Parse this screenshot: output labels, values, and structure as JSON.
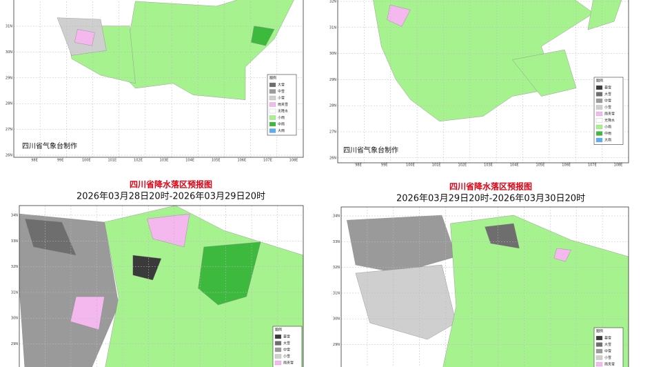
{
  "panels": [
    {
      "credit": "四川省气象台制作",
      "legend": {
        "title": "图例",
        "items": [
          {
            "label": "大雪",
            "color": "#6e6e6e"
          },
          {
            "label": "中雪",
            "color": "#9a9a9a"
          },
          {
            "label": "小雪",
            "color": "#cfcfcf"
          },
          {
            "label": "雨夹雪",
            "color": "#f4b8ee"
          },
          {
            "label": "无降水",
            "color": "#ffffff"
          },
          {
            "label": "小雨",
            "color": "#a6f28f"
          },
          {
            "label": "中雨",
            "color": "#3dba3d"
          },
          {
            "label": "大雨",
            "color": "#5aaef0"
          }
        ]
      },
      "xticks": [
        "98E",
        "99E",
        "100E",
        "101E",
        "102E",
        "103E",
        "104E",
        "105E",
        "106E",
        "107E",
        "108E"
      ],
      "yticks": [
        "31N",
        "30N",
        "29N",
        "28N",
        "27N",
        "26N"
      ]
    },
    {
      "credit": "四川省气象台制作",
      "legend": {
        "title": "图例",
        "items": [
          {
            "label": "暴雪",
            "color": "#3a3a3a"
          },
          {
            "label": "大雪",
            "color": "#6e6e6e"
          },
          {
            "label": "中雪",
            "color": "#9a9a9a"
          },
          {
            "label": "小雪",
            "color": "#cfcfcf"
          },
          {
            "label": "雨夹雪",
            "color": "#f4b8ee"
          },
          {
            "label": "无降水",
            "color": "#ffffff"
          },
          {
            "label": "小雨",
            "color": "#a6f28f"
          },
          {
            "label": "中雨",
            "color": "#3dba3d"
          },
          {
            "label": "大雨",
            "color": "#5aaef0"
          }
        ]
      },
      "xticks": [
        "98E",
        "99E",
        "100E",
        "101E",
        "102E",
        "103E",
        "104E",
        "105E",
        "106E",
        "107E",
        "108E"
      ],
      "yticks": [
        "32N",
        "31N",
        "30N",
        "29N",
        "28N",
        "27N",
        "26N"
      ]
    },
    {
      "title": "四川省降水落区预报图",
      "subtitle": "2026年03月28日20时-2026年03月29日20时",
      "legend": {
        "title": "图例",
        "items": [
          {
            "label": "暴雪",
            "color": "#3a3a3a"
          },
          {
            "label": "大雪",
            "color": "#6e6e6e"
          },
          {
            "label": "中雪",
            "color": "#9a9a9a"
          },
          {
            "label": "小雪",
            "color": "#cfcfcf"
          },
          {
            "label": "雨夹雪",
            "color": "#f4b8ee"
          }
        ]
      },
      "yticks": [
        "34N",
        "33N",
        "32N",
        "31N",
        "30N",
        "29N"
      ]
    },
    {
      "title": "四川省降水落区预报图",
      "subtitle": "2026年03月29日20时-2026年03月30日20时",
      "legend": {
        "title": "图例",
        "items": [
          {
            "label": "暴雪",
            "color": "#3a3a3a"
          },
          {
            "label": "大雪",
            "color": "#6e6e6e"
          },
          {
            "label": "中雪",
            "color": "#9a9a9a"
          },
          {
            "label": "小雪",
            "color": "#cfcfcf"
          },
          {
            "label": "雨夹雪",
            "color": "#f4b8ee"
          }
        ]
      },
      "yticks": [
        "34N",
        "33N",
        "32N",
        "31N",
        "30N",
        "29N"
      ]
    }
  ]
}
